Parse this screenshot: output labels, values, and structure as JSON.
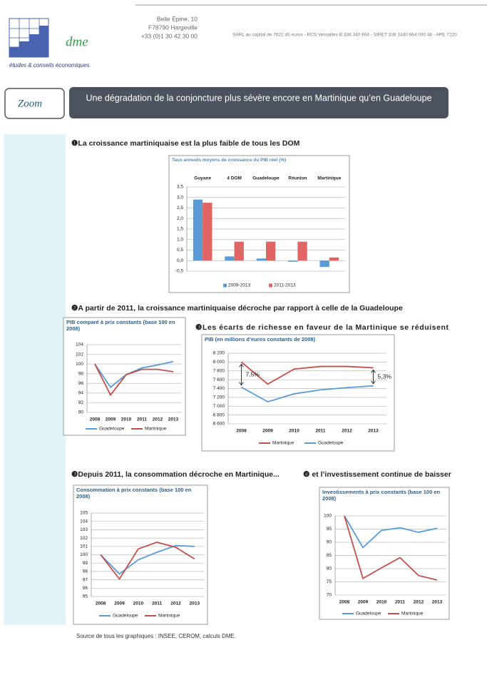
{
  "header": {
    "logo": "dme",
    "tagline": "études & conseils économiques",
    "address": [
      "Belle Épine, 10",
      "F78790 Hargeville",
      "+33 (0)1 30 42 30 00"
    ],
    "legal": "SARL au capital de 7622.45 euros - RCS Versailles B 338 340 664 - SIRET 338 3340 664 000 48 - APE 7220"
  },
  "banner": {
    "label": "Zoom",
    "title": "Une dégradation de la conjoncture plus sévère encore en Martinique qu’en Guadeloupe"
  },
  "chart_data": [
    {
      "type": "bar",
      "heading": "❶La croissance martiniquaise est la plus faible de tous les DOM",
      "title": "Taux annuels moyens de croissance du PIB réel (%)",
      "categories": [
        "Guyane",
        "4 DOM",
        "Guadeloupe",
        "Réunion",
        "Martinique"
      ],
      "series": [
        {
          "name": "2009-2013",
          "color": "#5b9bd5",
          "values": [
            2.9,
            0.2,
            0.1,
            -0.05,
            -0.3
          ]
        },
        {
          "name": "2011-2013",
          "color": "#e06666",
          "values": [
            2.75,
            0.9,
            0.9,
            0.9,
            0.15
          ]
        }
      ],
      "ylim": [
        -0.5,
        3.5
      ],
      "yticks": [
        {
          "value": -0.5,
          "label": "-0,5"
        },
        {
          "value": 0,
          "label": "0,0"
        },
        {
          "value": 0.5,
          "label": "0,5"
        },
        {
          "value": 1,
          "label": "1,0"
        },
        {
          "value": 1.5,
          "label": "1,5"
        },
        {
          "value": 2,
          "label": "2,0"
        },
        {
          "value": 2.5,
          "label": "2,5"
        },
        {
          "value": 3,
          "label": "3,0"
        },
        {
          "value": 3.5,
          "label": "3,5"
        }
      ],
      "grid": true,
      "legend": "bottom"
    },
    {
      "type": "line",
      "heading": "❷A partir de 2011, la croissance martiniquaise décroche par rapport à celle de la Guadeloupe",
      "title": "PIB comparé à prix constants (base 100 en 2008)",
      "x": [
        2008,
        2009,
        2010,
        2011,
        2012,
        2013
      ],
      "series": [
        {
          "name": "Guadeloupe",
          "color": "#5b9bd5",
          "values": [
            100,
            95.2,
            97.8,
            99.2,
            99.8,
            100.5
          ]
        },
        {
          "name": "Martinique",
          "color": "#c0504d",
          "values": [
            100,
            93.6,
            97.8,
            98.9,
            98.9,
            98.4
          ]
        }
      ],
      "ylim": [
        90,
        104
      ],
      "yticks": [
        90,
        92,
        94,
        96,
        98,
        100,
        102,
        104
      ],
      "grid": true,
      "legend": "bottom"
    },
    {
      "type": "line",
      "heading": "❸Les écarts de richesse en faveur de la Martinique se réduisent",
      "title": "PIB (en millions d’euros constants de 2008)",
      "x": [
        2008,
        2009,
        2010,
        2011,
        2012,
        2013
      ],
      "series": [
        {
          "name": "Martinique",
          "color": "#c0504d",
          "values": [
            8000,
            7500,
            7840,
            7900,
            7900,
            7870
          ]
        },
        {
          "name": "Guadeloupe",
          "color": "#5b9bd5",
          "values": [
            7430,
            7100,
            7280,
            7370,
            7420,
            7460
          ]
        }
      ],
      "ylim": [
        6600,
        8200
      ],
      "yticks": [
        {
          "value": 6600,
          "label": "6 600"
        },
        {
          "value": 6800,
          "label": "6 800"
        },
        {
          "value": 7000,
          "label": "7 000"
        },
        {
          "value": 7200,
          "label": "7 200"
        },
        {
          "value": 7400,
          "label": "7 400"
        },
        {
          "value": 7600,
          "label": "7 600"
        },
        {
          "value": 7800,
          "label": "7 800"
        },
        {
          "value": 8000,
          "label": "8 000"
        },
        {
          "value": 8200,
          "label": "8 200"
        }
      ],
      "annotations": [
        "7,5%",
        "5,3%"
      ],
      "grid": true,
      "legend": "bottom"
    },
    {
      "type": "line",
      "heading": "❸Depuis 2011, la consommation décroche en Martinique...",
      "title": "Consommation à prix constants (base 100 en 2008)",
      "x": [
        2008,
        2009,
        2010,
        2011,
        2012,
        2013
      ],
      "series": [
        {
          "name": "Guadeloupe",
          "color": "#5b9bd5",
          "values": [
            100,
            97.7,
            99.4,
            100.3,
            101.1,
            101
          ]
        },
        {
          "name": "Martinique",
          "color": "#c0504d",
          "values": [
            100,
            97.1,
            100.7,
            101.5,
            100.9,
            99.5
          ]
        }
      ],
      "ylim": [
        95,
        105
      ],
      "yticks": [
        95,
        96,
        97,
        98,
        99,
        100,
        101,
        102,
        103,
        104,
        105
      ],
      "grid": true,
      "legend": "bottom"
    },
    {
      "type": "line",
      "heading": "❹ et l’investissement continue de baisser",
      "title": "Investissements à prix constants (base 100 en 2008)",
      "x": [
        2008,
        2009,
        2010,
        2011,
        2012,
        2013
      ],
      "series": [
        {
          "name": "Guadeloupe",
          "color": "#5b9bd5",
          "values": [
            100,
            88,
            94.5,
            95.5,
            93.8,
            95.3
          ]
        },
        {
          "name": "Martinique",
          "color": "#c0504d",
          "values": [
            100,
            76.3,
            80.3,
            84.2,
            77.4,
            75.7
          ]
        }
      ],
      "ylim": [
        70,
        100
      ],
      "yticks": [
        70,
        75,
        80,
        85,
        90,
        95,
        100
      ],
      "grid": true,
      "legend": "bottom"
    }
  ],
  "source": "Source de tous les graphiques : INSEE, CEROM, calculs DME."
}
